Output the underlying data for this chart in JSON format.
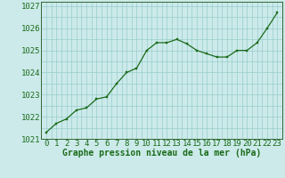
{
  "x": [
    0,
    1,
    2,
    3,
    4,
    5,
    6,
    7,
    8,
    9,
    10,
    11,
    12,
    13,
    14,
    15,
    16,
    17,
    18,
    19,
    20,
    21,
    22,
    23
  ],
  "y": [
    1021.3,
    1021.7,
    1021.9,
    1022.3,
    1022.4,
    1022.8,
    1022.9,
    1023.5,
    1024.0,
    1024.2,
    1025.0,
    1025.35,
    1025.35,
    1025.5,
    1025.3,
    1025.0,
    1024.85,
    1024.7,
    1024.7,
    1025.0,
    1025.0,
    1025.35,
    1026.0,
    1026.7
  ],
  "line_color": "#1a6b1a",
  "marker_color": "#1a6b1a",
  "bg_color": "#cceaea",
  "grid_color": "#99cccc",
  "xlabel": "Graphe pression niveau de la mer (hPa)",
  "xlabel_color": "#1a6b1a",
  "tick_color": "#1a6b1a",
  "ylim": [
    1021.0,
    1027.2
  ],
  "xlim": [
    -0.5,
    23.5
  ],
  "yticks": [
    1021,
    1022,
    1023,
    1024,
    1025,
    1026,
    1027
  ],
  "xticks": [
    0,
    1,
    2,
    3,
    4,
    5,
    6,
    7,
    8,
    9,
    10,
    11,
    12,
    13,
    14,
    15,
    16,
    17,
    18,
    19,
    20,
    21,
    22,
    23
  ],
  "font_size_xlabel": 7,
  "font_size_tick": 6.5
}
